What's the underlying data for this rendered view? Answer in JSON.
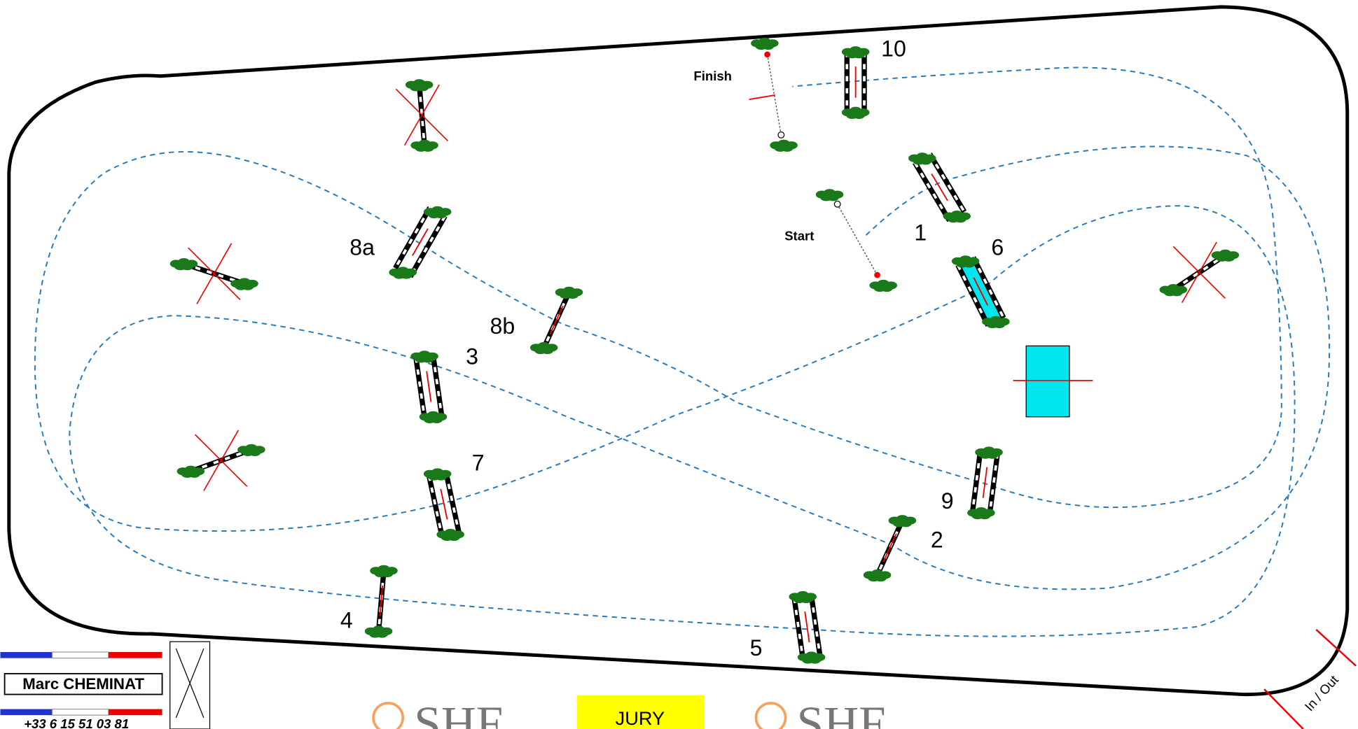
{
  "fences": [
    {
      "label": "1"
    },
    {
      "label": "2"
    },
    {
      "label": "3"
    },
    {
      "label": "4"
    },
    {
      "label": "5"
    },
    {
      "label": "6"
    },
    {
      "label": "7"
    },
    {
      "label": "8a"
    },
    {
      "label": "8b"
    },
    {
      "label": "9"
    },
    {
      "label": "10"
    }
  ],
  "start": "Start",
  "finish": "Finish",
  "designer": {
    "name": "Marc CHEMINAT",
    "phone": "+33 6 15 51 03 81"
  },
  "jury": "JURY",
  "exit": "In / Out",
  "logos": [
    "SHF",
    "SHF"
  ]
}
